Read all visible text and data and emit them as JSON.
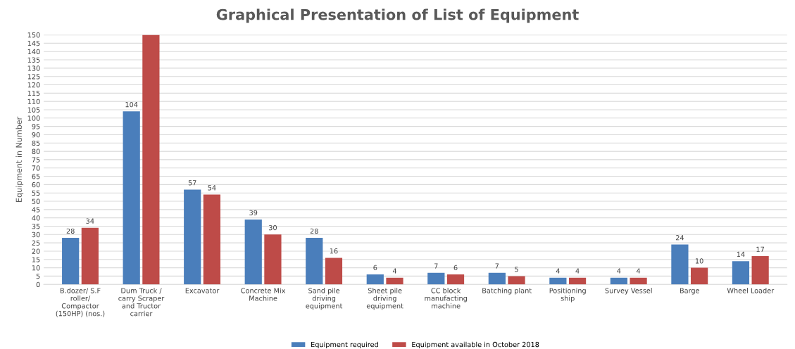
{
  "chart_data": {
    "type": "bar",
    "title": "Graphical Presentation of List of Equipment",
    "ylabel": "Equipment in Number",
    "categories": [
      "B.dozer/ S.F\nroller/\nCompactor\n(150HP) (nos.)",
      "Dum Truck /\ncarry Scraper\nand Tructor\ncarrier",
      "Excavator",
      "Concrete Mix\nMachine",
      "Sand pile\ndriving\nequipment",
      "Sheet pile\ndriving\nequipment",
      "CC block\nmanufacting\nmachine",
      "Batching plant",
      "Positioning\nship",
      "Survey Vessel",
      "Barge",
      "Wheel Loader"
    ],
    "series": [
      {
        "name": "Equipment required",
        "color": "#4a7ebb",
        "values": [
          28,
          104,
          57,
          39,
          28,
          6,
          7,
          7,
          4,
          4,
          24,
          14
        ],
        "value_labels": [
          "28",
          "104",
          "57",
          "39",
          "28",
          "6",
          "7",
          "7",
          "4",
          "4",
          "24",
          "14"
        ]
      },
      {
        "name": "Equipment available in October 2018",
        "color": "#be4b48",
        "values": [
          34,
          150,
          54,
          30,
          16,
          4,
          6,
          5,
          4,
          4,
          10,
          17
        ],
        "value_labels": [
          "34",
          null,
          "54",
          "30",
          "16",
          "4",
          "6",
          "5",
          "4",
          "4",
          "10",
          "17"
        ]
      }
    ],
    "ylim": [
      0,
      150
    ],
    "yticks": [
      0,
      5,
      10,
      15,
      20,
      25,
      30,
      35,
      40,
      45,
      50,
      55,
      60,
      65,
      70,
      75,
      80,
      85,
      90,
      95,
      100,
      105,
      110,
      115,
      120,
      125,
      130,
      135,
      140,
      145,
      150
    ],
    "grid": "y",
    "legend": "bottom"
  }
}
